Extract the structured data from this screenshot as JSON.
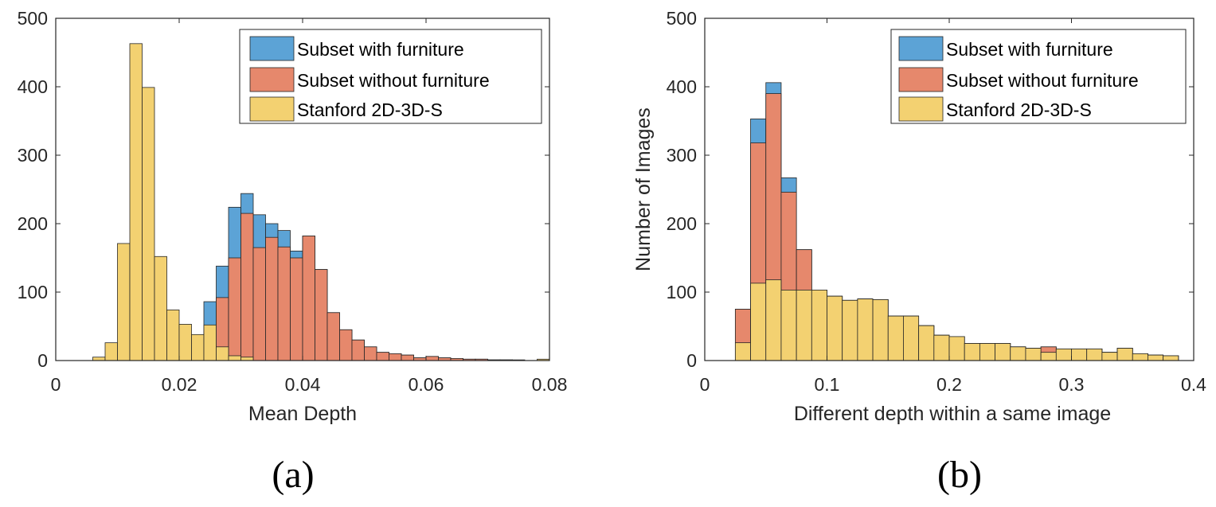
{
  "colors": {
    "series0": "#5ca3d6",
    "series1": "#e6886c",
    "series2": "#f3d171"
  },
  "chart_data": [
    {
      "type": "bar",
      "panel_label": "(a)",
      "xlabel": "Mean Depth",
      "ylabel": "",
      "xlim": [
        0,
        0.08
      ],
      "ylim": [
        0,
        500
      ],
      "xticks": [
        0,
        0.02,
        0.04,
        0.06,
        0.08
      ],
      "xtick_labels": [
        "0",
        "0.02",
        "0.04",
        "0.06",
        "0.08"
      ],
      "yticks": [
        0,
        100,
        200,
        300,
        400,
        500
      ],
      "ytick_labels": [
        "0",
        "100",
        "200",
        "300",
        "400",
        "500"
      ],
      "legend_position": "top-right",
      "bin_width": 0.002,
      "bin_starts": [
        0.006,
        0.008,
        0.01,
        0.012,
        0.014,
        0.016,
        0.018,
        0.02,
        0.022,
        0.024,
        0.026,
        0.028,
        0.03,
        0.032,
        0.034,
        0.036,
        0.038,
        0.04,
        0.042,
        0.044,
        0.046,
        0.048,
        0.05,
        0.052,
        0.054,
        0.056,
        0.058,
        0.06,
        0.062,
        0.064,
        0.066,
        0.068,
        0.07,
        0.072,
        0.074,
        0.076,
        0.078
      ],
      "series": [
        {
          "name": "Subset with furniture",
          "values": [
            0,
            0,
            0,
            0,
            0,
            0,
            0,
            0,
            0,
            86,
            138,
            224,
            244,
            213,
            200,
            190,
            160,
            182,
            133,
            70,
            45,
            30,
            20,
            12,
            10,
            8,
            4,
            6,
            4,
            3,
            2,
            2,
            1,
            1,
            0,
            0,
            0
          ]
        },
        {
          "name": "Subset without furniture",
          "values": [
            0,
            0,
            0,
            0,
            0,
            0,
            0,
            0,
            0,
            43,
            92,
            150,
            215,
            165,
            180,
            166,
            150,
            182,
            133,
            70,
            45,
            30,
            20,
            12,
            10,
            8,
            4,
            6,
            4,
            3,
            2,
            2,
            1,
            1,
            0,
            0,
            0
          ]
        },
        {
          "name": "Stanford 2D-3D-S",
          "values": [
            5,
            26,
            171,
            463,
            399,
            152,
            74,
            53,
            38,
            52,
            20,
            7,
            5,
            0,
            0,
            0,
            0,
            0,
            0,
            0,
            0,
            0,
            0,
            0,
            0,
            0,
            0,
            0,
            0,
            0,
            0,
            0,
            0,
            0,
            1,
            0,
            2
          ]
        }
      ]
    },
    {
      "type": "bar",
      "panel_label": "(b)",
      "xlabel": "Different depth within a same image",
      "ylabel": "Number of Images",
      "xlim": [
        0,
        0.4
      ],
      "ylim": [
        0,
        500
      ],
      "xticks": [
        0,
        0.1,
        0.2,
        0.3,
        0.4
      ],
      "xtick_labels": [
        "0",
        "0.1",
        "0.2",
        "0.3",
        "0.4"
      ],
      "yticks": [
        0,
        100,
        200,
        300,
        400,
        500
      ],
      "ytick_labels": [
        "0",
        "100",
        "200",
        "300",
        "400",
        "500"
      ],
      "legend_position": "top-right",
      "bin_width": 0.0125,
      "bin_starts": [
        0.025,
        0.0375,
        0.05,
        0.0625,
        0.075,
        0.0875,
        0.1,
        0.1125,
        0.125,
        0.1375,
        0.15,
        0.1625,
        0.175,
        0.1875,
        0.2,
        0.2125,
        0.225,
        0.2375,
        0.25,
        0.2625,
        0.275,
        0.2875,
        0.3,
        0.3125,
        0.325,
        0.3375,
        0.35,
        0.3625,
        0.375
      ],
      "series": [
        {
          "name": "Subset with furniture",
          "values": [
            75,
            353,
            406,
            267,
            162,
            103,
            94,
            88,
            90,
            89,
            65,
            65,
            51,
            37,
            35,
            25,
            25,
            25,
            20,
            18,
            20,
            17,
            17,
            17,
            12,
            18,
            10,
            8,
            7
          ]
        },
        {
          "name": "Subset without furniture",
          "values": [
            75,
            318,
            390,
            246,
            162,
            103,
            94,
            88,
            90,
            89,
            65,
            65,
            51,
            37,
            35,
            25,
            25,
            25,
            20,
            18,
            20,
            17,
            17,
            17,
            12,
            18,
            10,
            8,
            7
          ]
        },
        {
          "name": "Stanford 2D-3D-S",
          "values": [
            26,
            113,
            118,
            103,
            103,
            103,
            94,
            88,
            90,
            89,
            65,
            65,
            51,
            37,
            35,
            25,
            25,
            25,
            20,
            18,
            12,
            17,
            17,
            17,
            12,
            18,
            10,
            8,
            7
          ]
        }
      ]
    }
  ]
}
